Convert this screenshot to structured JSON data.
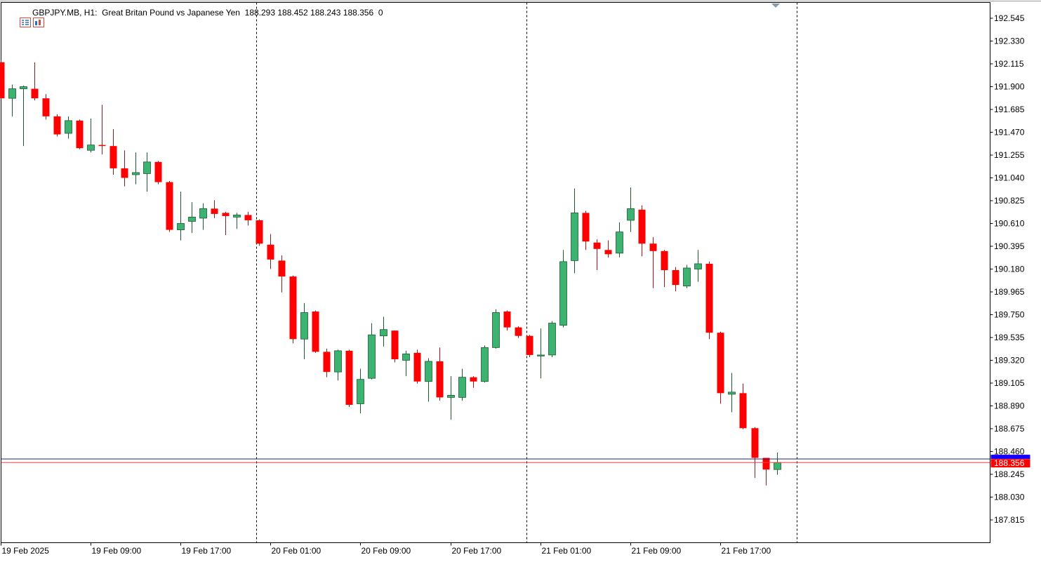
{
  "header": {
    "symbol": "GBPJPY.MB, H1:",
    "description": "Great Britan Pound vs Japanese Yen",
    "ohlc": "188.293 188.452 188.243 188.356",
    "volume": "0",
    "icons": [
      "chart-grid-icon",
      "indicator-list-icon"
    ]
  },
  "colors": {
    "bull": "#3cb371",
    "bear": "#ff0000",
    "bid_line": "#ff3b3b",
    "ask_line": "#1f2a7a",
    "ask_label": "#1500ff",
    "bid_label": "#ff0000",
    "grid": "#000000",
    "axis": "#000000"
  },
  "price_labels": {
    "ask": "188.390",
    "bid": "188.356"
  },
  "chart_data": {
    "type": "candlestick",
    "symbol": "GBPJPY.MB",
    "timeframe": "H1",
    "ylim": [
      187.72,
      192.66
    ],
    "y_ticks": [
      "192.545",
      "192.330",
      "192.115",
      "191.900",
      "191.685",
      "191.470",
      "191.255",
      "191.040",
      "190.825",
      "190.610",
      "190.395",
      "190.180",
      "189.965",
      "189.750",
      "189.535",
      "189.320",
      "189.105",
      "188.890",
      "188.675",
      "188.460",
      "188.245",
      "188.030",
      "187.815"
    ],
    "x_labels": [
      {
        "label": "19 Feb 2025",
        "index": 0
      },
      {
        "label": "19 Feb 09:00",
        "index": 8
      },
      {
        "label": "19 Feb 17:00",
        "index": 16
      },
      {
        "label": "20 Feb 01:00",
        "index": 24
      },
      {
        "label": "20 Feb 09:00",
        "index": 32
      },
      {
        "label": "20 Feb 17:00",
        "index": 40
      },
      {
        "label": "21 Feb 01:00",
        "index": 48
      },
      {
        "label": "21 Feb 09:00",
        "index": 56
      },
      {
        "label": "21 Feb 17:00",
        "index": 64
      }
    ],
    "day_separators": [
      22.75,
      46.75,
      70.75
    ],
    "bid": 188.356,
    "ask": 188.39,
    "candles": [
      {
        "o": 192.13,
        "h": 192.15,
        "l": 191.78,
        "c": 191.79
      },
      {
        "o": 191.79,
        "h": 191.92,
        "l": 191.62,
        "c": 191.88
      },
      {
        "o": 191.88,
        "h": 191.91,
        "l": 191.34,
        "c": 191.9
      },
      {
        "o": 191.88,
        "h": 192.13,
        "l": 191.77,
        "c": 191.79
      },
      {
        "o": 191.79,
        "h": 191.83,
        "l": 191.59,
        "c": 191.62
      },
      {
        "o": 191.62,
        "h": 191.64,
        "l": 191.43,
        "c": 191.45
      },
      {
        "o": 191.46,
        "h": 191.62,
        "l": 191.41,
        "c": 191.58
      },
      {
        "o": 191.58,
        "h": 191.59,
        "l": 191.31,
        "c": 191.32
      },
      {
        "o": 191.3,
        "h": 191.6,
        "l": 191.28,
        "c": 191.35
      },
      {
        "o": 191.35,
        "h": 191.73,
        "l": 191.26,
        "c": 191.34
      },
      {
        "o": 191.34,
        "h": 191.5,
        "l": 191.07,
        "c": 191.13
      },
      {
        "o": 191.13,
        "h": 191.3,
        "l": 190.96,
        "c": 191.04
      },
      {
        "o": 191.07,
        "h": 191.28,
        "l": 190.98,
        "c": 191.09
      },
      {
        "o": 191.08,
        "h": 191.28,
        "l": 190.91,
        "c": 191.19
      },
      {
        "o": 191.19,
        "h": 191.2,
        "l": 190.98,
        "c": 191.0
      },
      {
        "o": 191.0,
        "h": 191.01,
        "l": 190.53,
        "c": 190.55
      },
      {
        "o": 190.55,
        "h": 190.91,
        "l": 190.45,
        "c": 190.61
      },
      {
        "o": 190.63,
        "h": 190.81,
        "l": 190.52,
        "c": 190.67
      },
      {
        "o": 190.66,
        "h": 190.8,
        "l": 190.55,
        "c": 190.75
      },
      {
        "o": 190.75,
        "h": 190.83,
        "l": 190.66,
        "c": 190.7
      },
      {
        "o": 190.71,
        "h": 190.72,
        "l": 190.5,
        "c": 190.68
      },
      {
        "o": 190.67,
        "h": 190.71,
        "l": 190.56,
        "c": 190.69
      },
      {
        "o": 190.69,
        "h": 190.72,
        "l": 190.59,
        "c": 190.64
      },
      {
        "o": 190.64,
        "h": 190.65,
        "l": 190.4,
        "c": 190.42
      },
      {
        "o": 190.41,
        "h": 190.51,
        "l": 190.18,
        "c": 190.27
      },
      {
        "o": 190.26,
        "h": 190.31,
        "l": 189.96,
        "c": 190.11
      },
      {
        "o": 190.11,
        "h": 190.12,
        "l": 189.48,
        "c": 189.52
      },
      {
        "o": 189.52,
        "h": 189.86,
        "l": 189.33,
        "c": 189.77
      },
      {
        "o": 189.78,
        "h": 189.79,
        "l": 189.39,
        "c": 189.4
      },
      {
        "o": 189.4,
        "h": 189.43,
        "l": 189.16,
        "c": 189.21
      },
      {
        "o": 189.21,
        "h": 189.42,
        "l": 189.13,
        "c": 189.41
      },
      {
        "o": 189.41,
        "h": 189.42,
        "l": 188.88,
        "c": 188.9
      },
      {
        "o": 188.91,
        "h": 189.24,
        "l": 188.82,
        "c": 189.14
      },
      {
        "o": 189.15,
        "h": 189.67,
        "l": 189.14,
        "c": 189.56
      },
      {
        "o": 189.55,
        "h": 189.73,
        "l": 189.45,
        "c": 189.61
      },
      {
        "o": 189.6,
        "h": 189.6,
        "l": 189.3,
        "c": 189.33
      },
      {
        "o": 189.32,
        "h": 189.41,
        "l": 189.17,
        "c": 189.38
      },
      {
        "o": 189.39,
        "h": 189.42,
        "l": 189.1,
        "c": 189.12
      },
      {
        "o": 189.12,
        "h": 189.34,
        "l": 188.93,
        "c": 189.31
      },
      {
        "o": 189.31,
        "h": 189.44,
        "l": 188.94,
        "c": 188.97
      },
      {
        "o": 188.97,
        "h": 189.17,
        "l": 188.76,
        "c": 188.99
      },
      {
        "o": 188.97,
        "h": 189.24,
        "l": 188.94,
        "c": 189.16
      },
      {
        "o": 189.16,
        "h": 189.17,
        "l": 189.06,
        "c": 189.12
      },
      {
        "o": 189.12,
        "h": 189.46,
        "l": 189.11,
        "c": 189.44
      },
      {
        "o": 189.44,
        "h": 189.8,
        "l": 189.43,
        "c": 189.77
      },
      {
        "o": 189.78,
        "h": 189.79,
        "l": 189.6,
        "c": 189.63
      },
      {
        "o": 189.63,
        "h": 189.64,
        "l": 189.53,
        "c": 189.55
      },
      {
        "o": 189.55,
        "h": 189.56,
        "l": 189.35,
        "c": 189.37
      },
      {
        "o": 189.36,
        "h": 189.62,
        "l": 189.15,
        "c": 189.37
      },
      {
        "o": 189.37,
        "h": 189.69,
        "l": 189.35,
        "c": 189.67
      },
      {
        "o": 189.65,
        "h": 190.36,
        "l": 189.63,
        "c": 190.25
      },
      {
        "o": 190.26,
        "h": 190.94,
        "l": 190.14,
        "c": 190.71
      },
      {
        "o": 190.71,
        "h": 190.73,
        "l": 190.36,
        "c": 190.44
      },
      {
        "o": 190.43,
        "h": 190.46,
        "l": 190.17,
        "c": 190.37
      },
      {
        "o": 190.36,
        "h": 190.45,
        "l": 190.29,
        "c": 190.32
      },
      {
        "o": 190.33,
        "h": 190.62,
        "l": 190.29,
        "c": 190.53
      },
      {
        "o": 190.64,
        "h": 190.95,
        "l": 190.53,
        "c": 190.75
      },
      {
        "o": 190.74,
        "h": 190.78,
        "l": 190.3,
        "c": 190.42
      },
      {
        "o": 190.42,
        "h": 190.48,
        "l": 190.0,
        "c": 190.35
      },
      {
        "o": 190.35,
        "h": 190.36,
        "l": 190.01,
        "c": 190.17
      },
      {
        "o": 190.17,
        "h": 190.2,
        "l": 189.97,
        "c": 190.03
      },
      {
        "o": 190.02,
        "h": 190.22,
        "l": 190.0,
        "c": 190.19
      },
      {
        "o": 190.18,
        "h": 190.36,
        "l": 190.06,
        "c": 190.23
      },
      {
        "o": 190.23,
        "h": 190.25,
        "l": 189.52,
        "c": 189.58
      },
      {
        "o": 189.58,
        "h": 189.59,
        "l": 188.91,
        "c": 189.01
      },
      {
        "o": 189.0,
        "h": 189.2,
        "l": 188.83,
        "c": 189.02
      },
      {
        "o": 189.01,
        "h": 189.1,
        "l": 188.67,
        "c": 188.68
      },
      {
        "o": 188.68,
        "h": 188.69,
        "l": 188.21,
        "c": 188.4
      },
      {
        "o": 188.4,
        "h": 188.4,
        "l": 188.14,
        "c": 188.29
      },
      {
        "o": 188.29,
        "h": 188.45,
        "l": 188.24,
        "c": 188.356
      }
    ]
  }
}
